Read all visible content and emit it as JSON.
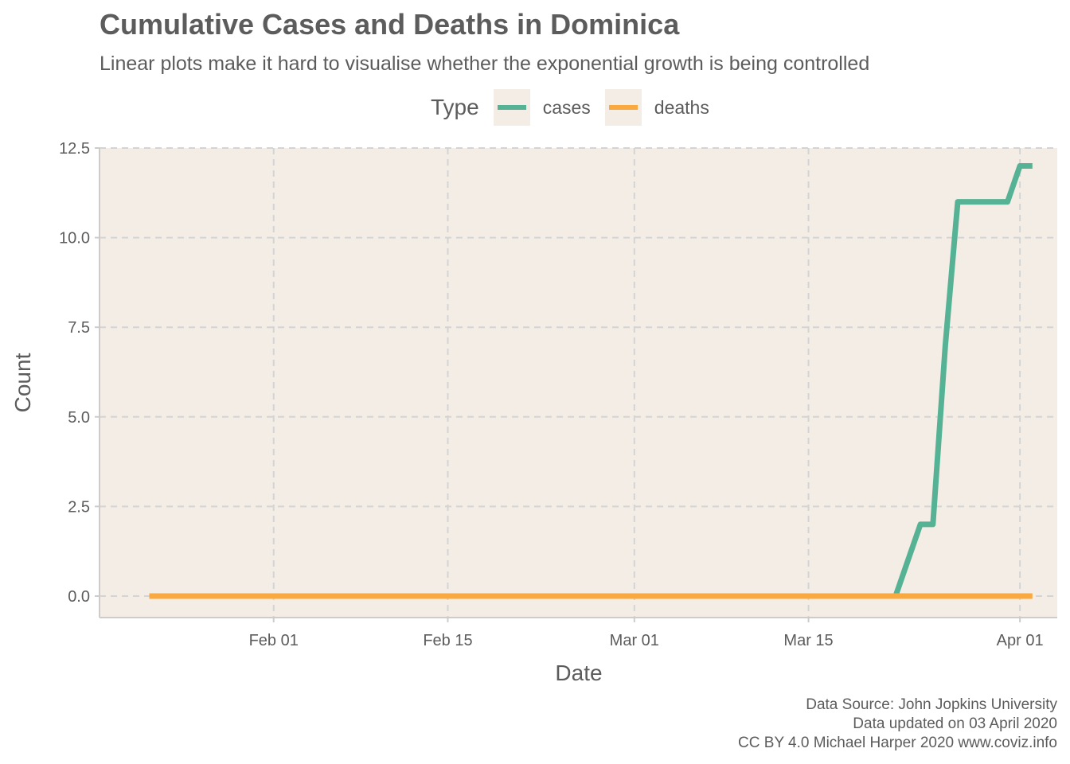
{
  "chart_data": {
    "type": "line",
    "title": "Cumulative Cases and Deaths in Dominica",
    "subtitle": "Linear plots make it hard to visualise whether the exponential growth is being controlled",
    "xlabel": "Date",
    "ylabel": "Count",
    "legend_title": "Type",
    "legend_position": "top",
    "grid": true,
    "xlim": [
      "2020-01-18",
      "2020-04-04"
    ],
    "ylim": [
      -0.6,
      12.5
    ],
    "x_ticks": [
      {
        "date": "2020-02-01",
        "label": "Feb 01"
      },
      {
        "date": "2020-02-15",
        "label": "Feb 15"
      },
      {
        "date": "2020-03-01",
        "label": "Mar 01"
      },
      {
        "date": "2020-03-15",
        "label": "Mar 15"
      },
      {
        "date": "2020-04-01",
        "label": "Apr 01"
      }
    ],
    "y_ticks": [
      {
        "value": 0,
        "label": "0.0"
      },
      {
        "value": 2.5,
        "label": "2.5"
      },
      {
        "value": 5,
        "label": "5.0"
      },
      {
        "value": 7.5,
        "label": "7.5"
      },
      {
        "value": 10,
        "label": "10.0"
      },
      {
        "value": 12.5,
        "label": "12.5"
      }
    ],
    "series": [
      {
        "name": "cases",
        "color": "#55b294",
        "points": [
          {
            "x": "2020-01-22",
            "y": 0
          },
          {
            "x": "2020-03-22",
            "y": 0
          },
          {
            "x": "2020-03-24",
            "y": 2
          },
          {
            "x": "2020-03-25",
            "y": 2
          },
          {
            "x": "2020-03-26",
            "y": 7
          },
          {
            "x": "2020-03-27",
            "y": 11
          },
          {
            "x": "2020-03-31",
            "y": 11
          },
          {
            "x": "2020-04-01",
            "y": 12
          },
          {
            "x": "2020-04-02",
            "y": 12
          }
        ]
      },
      {
        "name": "deaths",
        "color": "#f9a93d",
        "points": [
          {
            "x": "2020-01-22",
            "y": 0
          },
          {
            "x": "2020-04-02",
            "y": 0
          }
        ]
      }
    ]
  },
  "caption": {
    "line1": "Data Source: John Jopkins University",
    "line2": "Data updated on 03 April 2020",
    "line3": "CC BY 4.0 Michael Harper 2020 www.coviz.info"
  },
  "colors": {
    "panel_background": "#f3ede6",
    "grid": "#d4d4d4",
    "axis": "#cccccc",
    "text": "#5c5c5c"
  }
}
